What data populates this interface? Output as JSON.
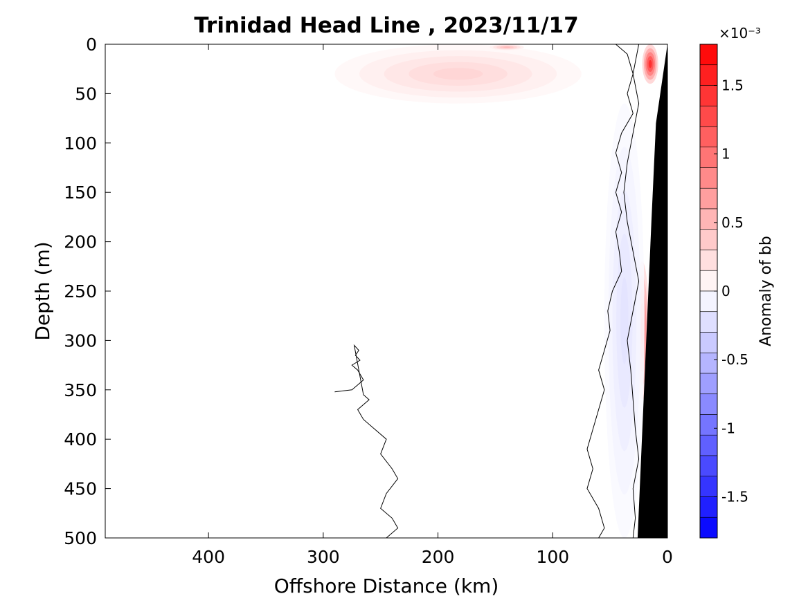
{
  "chart_data": {
    "type": "heatmap",
    "subtype": "filled-contour section",
    "title": "Trinidad Head Line , 2023/11/17",
    "xlabel": "Offshore Distance (km)",
    "ylabel": "Depth (m)",
    "xlim": [
      490,
      0
    ],
    "ylim": [
      0,
      500
    ],
    "x_reversed": true,
    "y_reversed": true,
    "x_ticks": [
      400,
      300,
      200,
      100,
      0
    ],
    "x_tick_labels": [
      "400",
      "300",
      "200",
      "100",
      "0"
    ],
    "y_ticks": [
      0,
      50,
      100,
      150,
      200,
      250,
      300,
      350,
      400,
      450,
      500
    ],
    "y_tick_labels": [
      "0",
      "50",
      "100",
      "150",
      "200",
      "250",
      "300",
      "350",
      "400",
      "450",
      "500"
    ],
    "colorbar": {
      "label": "Anomaly of bb",
      "exponent_label": "×10⁻³",
      "range": [
        -0.0018,
        0.0018
      ],
      "ticks": [
        -0.0015,
        -0.001,
        -0.0005,
        0,
        0.0005,
        0.001,
        0.0015
      ],
      "tick_labels": [
        "-1.5",
        "-1",
        "-0.5",
        "0",
        "0.5",
        "1",
        "1.5"
      ],
      "levels": 24,
      "colormap": "blue-white-red",
      "color_negative": "#0000ff",
      "color_zero": "#ffffff",
      "color_positive": "#ff0000"
    },
    "grid": false,
    "data_extent_x": [
      290,
      0
    ],
    "positive_anomalies": [
      {
        "label": "surface layer",
        "x": [
          290,
          75
        ],
        "y": [
          0,
          60
        ],
        "peak": 0.0003
      },
      {
        "label": "surface maximum near 140 km",
        "x": [
          155,
          125
        ],
        "y": [
          0,
          6
        ],
        "peak": 0.0005
      },
      {
        "label": "near-shore surface maximum",
        "x": [
          22,
          8
        ],
        "y": [
          0,
          40
        ],
        "peak": 0.0015
      },
      {
        "label": "slope maximum",
        "x": [
          28,
          16
        ],
        "y": [
          220,
          360
        ],
        "peak": 0.0012
      }
    ],
    "negative_anomalies": [
      {
        "label": "shelf/slope band",
        "x": [
          55,
          20
        ],
        "y": [
          60,
          500
        ],
        "peak": -0.0002
      }
    ],
    "zero_contours": [
      {
        "label": "offshore contour",
        "points": [
          [
            290,
            352
          ],
          [
            275,
            350
          ],
          [
            270,
            345
          ],
          [
            265,
            340
          ],
          [
            270,
            330
          ],
          [
            275,
            325
          ],
          [
            268,
            320
          ],
          [
            272,
            315
          ],
          [
            269,
            310
          ],
          [
            273,
            305
          ],
          [
            265,
            355
          ],
          [
            260,
            360
          ],
          [
            270,
            370
          ],
          [
            265,
            380
          ],
          [
            255,
            390
          ],
          [
            245,
            400
          ],
          [
            250,
            415
          ],
          [
            240,
            430
          ],
          [
            235,
            440
          ],
          [
            245,
            455
          ],
          [
            250,
            470
          ],
          [
            240,
            480
          ],
          [
            235,
            490
          ],
          [
            245,
            500
          ]
        ]
      },
      {
        "label": "mid-shelf contour",
        "points": [
          [
            45,
            0
          ],
          [
            35,
            10
          ],
          [
            30,
            30
          ],
          [
            35,
            50
          ],
          [
            30,
            70
          ],
          [
            40,
            90
          ],
          [
            45,
            110
          ],
          [
            40,
            130
          ],
          [
            45,
            150
          ],
          [
            40,
            170
          ],
          [
            45,
            190
          ],
          [
            42,
            210
          ],
          [
            40,
            230
          ],
          [
            48,
            250
          ],
          [
            52,
            270
          ],
          [
            50,
            290
          ],
          [
            55,
            310
          ],
          [
            60,
            330
          ],
          [
            55,
            350
          ],
          [
            60,
            370
          ],
          [
            65,
            390
          ],
          [
            70,
            410
          ],
          [
            65,
            430
          ],
          [
            70,
            450
          ],
          [
            60,
            470
          ],
          [
            55,
            490
          ],
          [
            60,
            500
          ]
        ]
      },
      {
        "label": "inner contour",
        "points": [
          [
            5,
            0
          ],
          [
            25,
            0
          ],
          [
            30,
            30
          ],
          [
            25,
            60
          ],
          [
            30,
            90
          ],
          [
            35,
            120
          ],
          [
            38,
            150
          ],
          [
            35,
            180
          ],
          [
            30,
            210
          ],
          [
            25,
            240
          ],
          [
            30,
            270
          ],
          [
            35,
            300
          ],
          [
            32,
            330
          ],
          [
            30,
            360
          ],
          [
            28,
            390
          ],
          [
            25,
            420
          ],
          [
            30,
            450
          ],
          [
            28,
            480
          ],
          [
            30,
            500
          ]
        ]
      }
    ],
    "bathymetry_mask": {
      "color": "#000000",
      "outline": [
        [
          0,
          0
        ],
        [
          0,
          500
        ],
        [
          26,
          500
        ],
        [
          14,
          180
        ],
        [
          10,
          80
        ],
        [
          0,
          0
        ]
      ]
    }
  }
}
